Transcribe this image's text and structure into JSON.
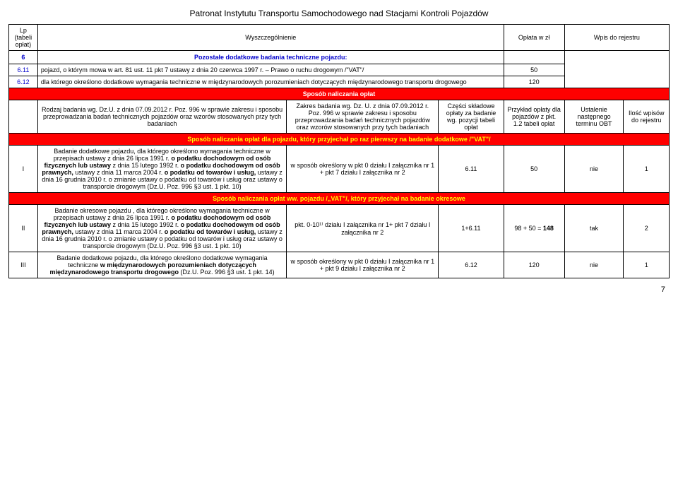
{
  "title": "Patronat Instytutu Transportu Samochodowego nad Stacjami Kontroli Pojazdów",
  "head": {
    "lp": "Lp (tabeli opłat)",
    "wysz": "Wyszczególnienie",
    "oplata": "Opłata w zł",
    "wpis": "Wpis do rejestru"
  },
  "section6": {
    "num": "6",
    "title": "Pozostałe dodatkowe badania techniczne pojazdu:"
  },
  "r611": {
    "num": "6.11",
    "text": "pojazd, o którym mowa w art. 81 ust. 11 pkt 7 ustawy z dnia 20 czerwca 1997 r. – Prawo o ruchu drogowym /\"VAT\"/",
    "fee": "50"
  },
  "r612": {
    "num": "6.12",
    "text_a": "dla którego określono dodatkowe wymagania techniczne w międzynarodowych porozumieniach dotyczących międzynarodowego transportu drogowego",
    "fee": "120"
  },
  "calc_header": "Sposób naliczania opłat",
  "sub": {
    "rodzaj": "Rodzaj badania wg. Dz.U. z dnia 07.09.2012 r. Poz. 996 w sprawie zakresu i sposobu przeprowadzania badań technicznych pojazdów oraz wzorów stosowanych przy tych badaniach",
    "zakres": "Zakres badania wg. Dz. U. z dnia 07.09.2012 r. Poz. 996 w sprawie zakresu i sposobu przeprowadzania badań technicznych pojazdów oraz wzorów stosowanych przy tych badaniach",
    "czesci": "Części składowe opłaty za badanie wg. pozycji tabeli opłat",
    "przyklad": "Przykład opłaty dla pojazdów z pkt. 1.2 tabeli opłat",
    "ustalenie": "Ustalenie następnego terminu OBT",
    "ilosc": "Ilość wpisów do rejestru"
  },
  "red1": "Sposób naliczania opłat dla pojazdu, który przyjechał po raz pierwszy na badanie dodatkowe /\"VAT\"/",
  "rowI": {
    "num": "I",
    "desc_pre": "Badanie dodatkowe pojazdu, dla którego określono wymagania techniczne w przepisach ustawy z dnia 26 lipca 1991 r. ",
    "desc_b1": "o podatku dochodowym od osób fizycznych lub ustawy",
    "desc_mid1": " z dnia 15 lutego 1992 r. ",
    "desc_b2": "o podatku dochodowym od osób prawnych,",
    "desc_mid2": " ustawy z dnia 11 marca 2004 r. ",
    "desc_b3": "o podatku od towarów i usług,",
    "desc_post": " ustawy z dnia 16 grudnia 2010 r. o zmianie ustawy o podatku od towarów i usług oraz ustawy o transporcie drogowym (Dz.U. Poz. 996 §3 ust. 1 pkt. 10)",
    "zakres": "w sposób określony w pkt 0 działu I załącznika nr 1 + pkt 7 działu I załącznika nr 2",
    "czesci": "6.11",
    "przyklad": "50",
    "ustalenie": "nie",
    "ilosc": "1"
  },
  "red2": "Sposób naliczania opłat ww. pojazdu /„VAT\"/, który przyjechał na badanie okresowe",
  "rowII": {
    "num": "II",
    "desc_pre": "Badanie okresowe pojazdu , dla którego określono wymagania techniczne w przepisach ustawy z dnia 26 lipca 1991 r. ",
    "desc_b1": "o podatku dochodowym od osób fizycznych lub ustawy",
    "desc_mid1": " z dnia 15 lutego 1992 r. ",
    "desc_b2": "o podatku dochodowym od osób prawnych,",
    "desc_mid2": " ustawy z dnia 11 marca 2004 r. ",
    "desc_b3": "o podatku od towarów i usług,",
    "desc_post": " ustawy z dnia 16 grudnia 2010 r. o zmianie ustawy o podatku od towarów i usług oraz ustawy o transporcie drogowym (Dz.U. Poz. 996 §3 ust. 1 pkt. 10)",
    "zakres": "pkt. 0-10¹⁾ działu I załącznika nr 1+ pkt 7 działu I załącznika nr 2",
    "czesci": "1+6.11",
    "przyklad_a": "98 + 50 = ",
    "przyklad_b": "148",
    "ustalenie": "tak",
    "ilosc": "2"
  },
  "rowIII": {
    "num": "III",
    "desc_pre": "Badanie dodatkowe pojazdu, dla którego określono dodatkowe wymagania techniczne ",
    "desc_b": "w międzynarodowych porozumieniach dotyczących międzynarodowego transportu drogowego",
    "desc_post": " (Dz.U. Poz. 996 §3 ust. 1 pkt. 14)",
    "zakres": "w sposób określony w pkt 0 działu I załącznika nr 1 + pkt 9 działu I załącznika nr 2",
    "czesci": "6.12",
    "przyklad": "120",
    "ustalenie": "nie",
    "ilosc": "1"
  },
  "page_number": "7"
}
